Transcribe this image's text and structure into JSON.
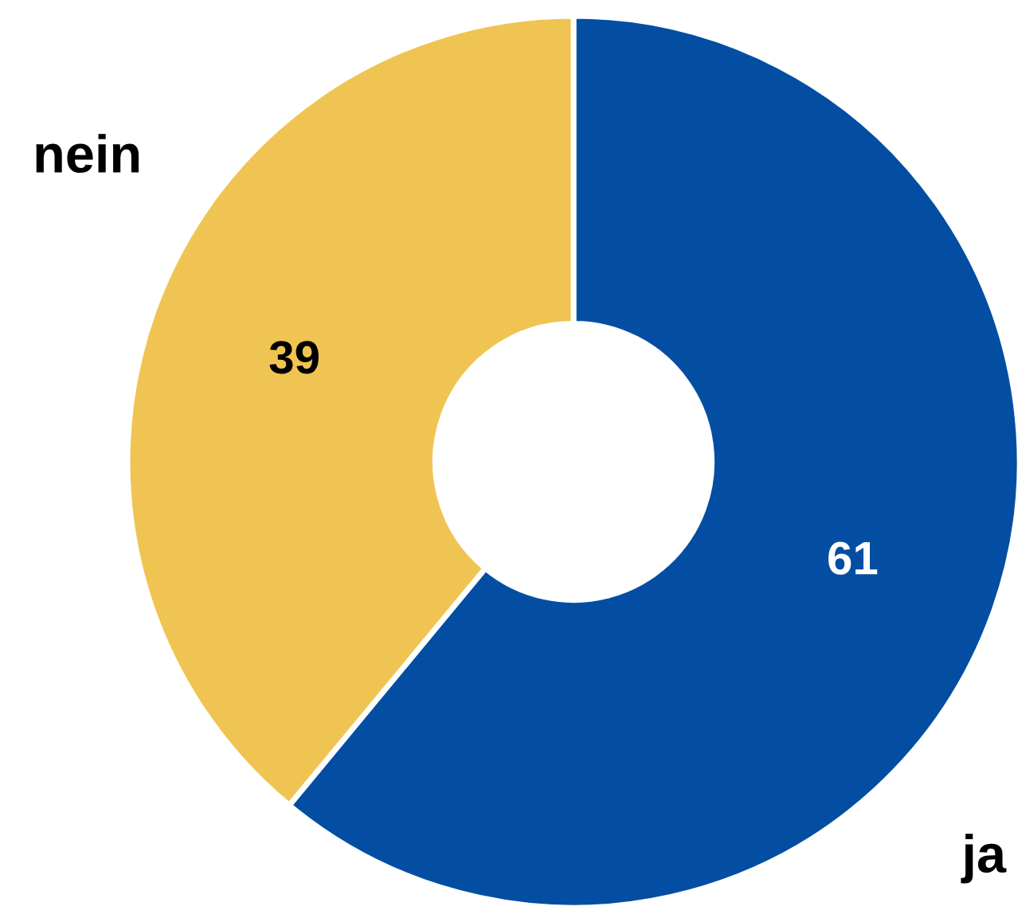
{
  "chart_data": {
    "type": "donut",
    "categories": [
      "ja",
      "nein"
    ],
    "values": [
      61,
      39
    ],
    "colors": [
      "#034ea2",
      "#f0c452"
    ],
    "data_labels": true
  }
}
